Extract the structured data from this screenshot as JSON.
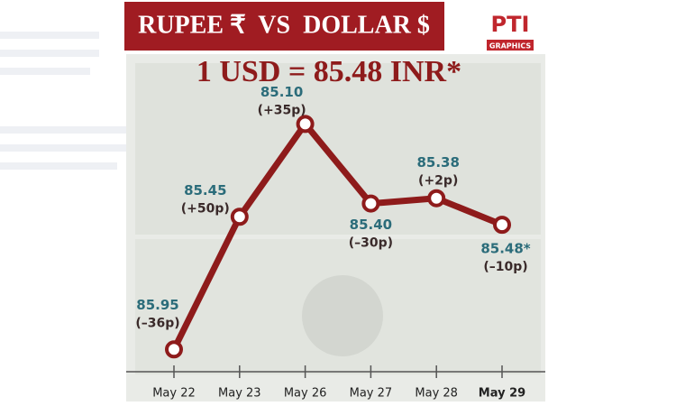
{
  "chart_data": {
    "type": "line",
    "title": "RUPEE ₹  VS  DOLLAR $",
    "subtitle": "1 USD = 85.48 INR*",
    "logo": {
      "name": "PTI",
      "caption": "GRAPHICS"
    },
    "categories": [
      "May 22",
      "May 23",
      "May 26",
      "May 27",
      "May 28",
      "May 29"
    ],
    "values": [
      85.95,
      85.45,
      85.1,
      85.4,
      85.38,
      85.48
    ],
    "value_labels": [
      "85.95",
      "85.45",
      "85.10",
      "85.40",
      "85.38",
      "85.48*"
    ],
    "annotations": [
      "(–36p)",
      "(+50p)",
      "(+35p)",
      "(–30p)",
      "(+2p)",
      "(–10p)"
    ],
    "color": "#8e1b1b",
    "ylim": [
      86.0,
      85.0
    ]
  }
}
